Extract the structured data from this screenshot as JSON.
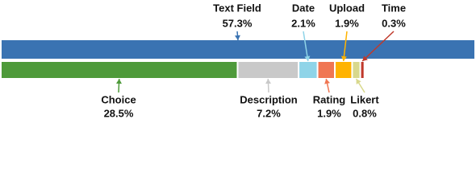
{
  "chart_data": {
    "type": "proportion-bar",
    "categories": [
      "Text Field",
      "Choice",
      "Description",
      "Date",
      "Rating",
      "Upload",
      "Likert",
      "Time"
    ],
    "values": [
      57.3,
      28.5,
      7.2,
      2.1,
      1.9,
      1.9,
      0.8,
      0.3
    ],
    "value_labels": [
      "57.3%",
      "28.5%",
      "7.2%",
      "2.1%",
      "1.9%",
      "1.9%",
      "0.8%",
      "0.3%"
    ],
    "colors": [
      "#3a73b2",
      "#4e9a3a",
      "#c9c9c9",
      "#8fd4e8",
      "#f07652",
      "#ffb300",
      "#d8d88c",
      "#c0392b"
    ]
  }
}
